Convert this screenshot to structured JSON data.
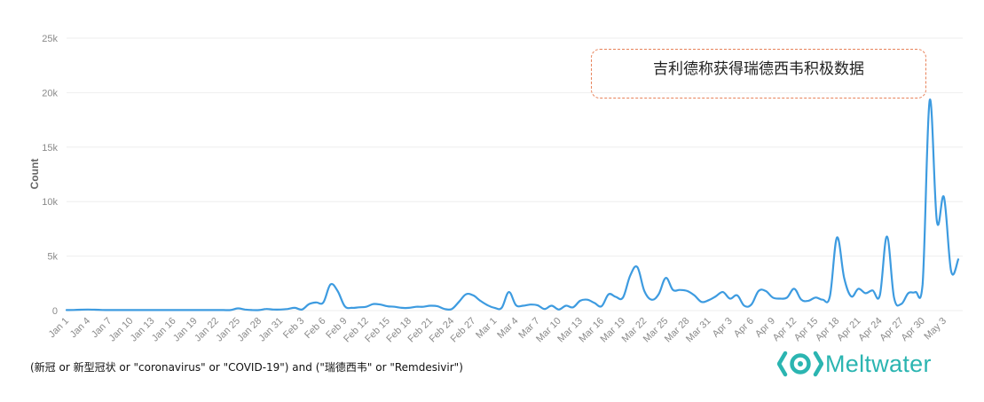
{
  "annotation": "吉利德称获得瑞德西韦积极数据",
  "query": "(新冠 or 新型冠状 or \"coronavirus\" or \"COVID-19\") and (\"瑞德西韦\" or \"Remdesivir\")",
  "brand": {
    "name": "Meltwater",
    "icon": "meltwater-logo-icon",
    "color": "#2bb5b1"
  },
  "chart_data": {
    "type": "line",
    "ylabel": "Count",
    "ylim": [
      0,
      25000
    ],
    "yticks": [
      {
        "value": 0,
        "label": "0"
      },
      {
        "value": 5000,
        "label": "5k"
      },
      {
        "value": 10000,
        "label": "10k"
      },
      {
        "value": 15000,
        "label": "15k"
      },
      {
        "value": 20000,
        "label": "20k"
      },
      {
        "value": 25000,
        "label": "25k"
      }
    ],
    "xtick_labels": [
      "Jan 1",
      "Jan 4",
      "Jan 7",
      "Jan 10",
      "Jan 13",
      "Jan 16",
      "Jan 19",
      "Jan 22",
      "Jan 25",
      "Jan 28",
      "Jan 31",
      "Feb 3",
      "Feb 6",
      "Feb 9",
      "Feb 12",
      "Feb 15",
      "Feb 18",
      "Feb 21",
      "Feb 24",
      "Feb 27",
      "Mar 1",
      "Mar 4",
      "Mar 7",
      "Mar 10",
      "Mar 13",
      "Mar 16",
      "Mar 19",
      "Mar 22",
      "Mar 25",
      "Mar 28",
      "Mar 31",
      "Apr 3",
      "Apr 6",
      "Apr 9",
      "Apr 12",
      "Apr 15",
      "Apr 18",
      "Apr 21",
      "Apr 24",
      "Apr 27",
      "Apr 30",
      "May 3"
    ],
    "tick_every_days": 3,
    "start_label": "Jan 1",
    "color": "#3d9be0",
    "grid": true,
    "values": [
      50,
      60,
      80,
      100,
      80,
      60,
      50,
      50,
      50,
      50,
      50,
      50,
      50,
      50,
      50,
      50,
      50,
      50,
      50,
      50,
      50,
      50,
      50,
      50,
      200,
      100,
      50,
      50,
      150,
      100,
      100,
      150,
      250,
      100,
      600,
      750,
      750,
      2400,
      1800,
      400,
      250,
      300,
      350,
      600,
      550,
      400,
      350,
      250,
      250,
      350,
      350,
      450,
      400,
      150,
      150,
      800,
      1500,
      1400,
      900,
      500,
      250,
      250,
      1700,
      500,
      450,
      550,
      500,
      150,
      450,
      100,
      450,
      300,
      900,
      1000,
      700,
      400,
      1500,
      1250,
      1200,
      3200,
      4000,
      1800,
      1000,
      1500,
      3000,
      1900,
      1900,
      1800,
      1400,
      800,
      950,
      1300,
      1700,
      1100,
      1400,
      450,
      550,
      1800,
      1800,
      1200,
      1100,
      1200,
      2000,
      1000,
      900,
      1200,
      1000,
      1300,
      6700,
      3000,
      1300,
      2000,
      1600,
      1850,
      1400,
      6800,
      1200,
      600,
      1600,
      1700,
      2400,
      19300,
      8200,
      10400,
      3600,
      4700
    ]
  }
}
